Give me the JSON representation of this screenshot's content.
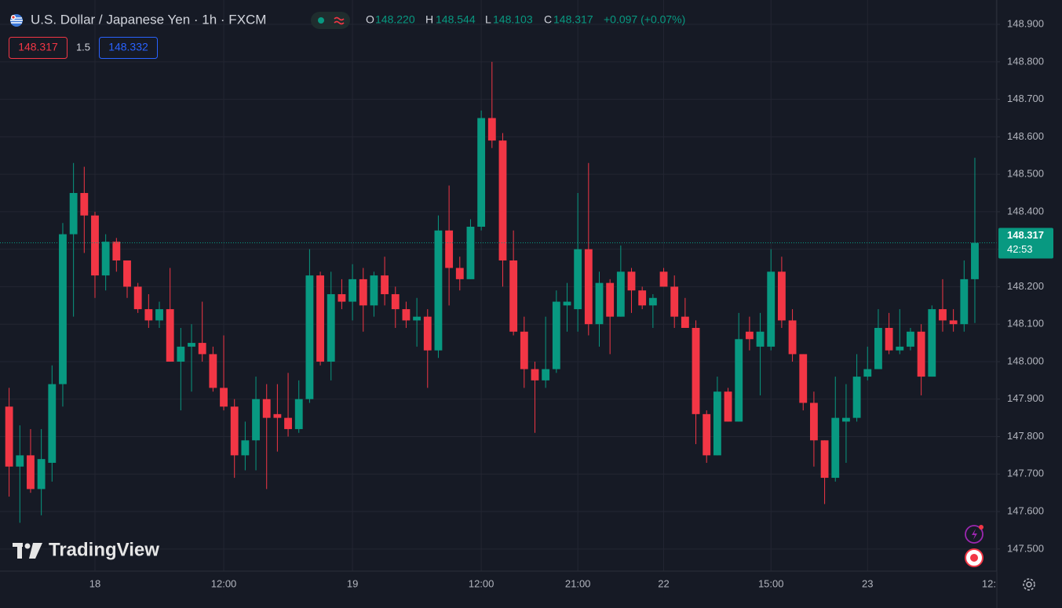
{
  "header": {
    "title": "U.S. Dollar / Japanese Yen · 1h · FXCM",
    "legend": [
      {
        "key": "O",
        "value": "148.220"
      },
      {
        "key": "H",
        "value": "148.544"
      },
      {
        "key": "L",
        "value": "148.103"
      },
      {
        "key": "C",
        "value": "148.317"
      }
    ],
    "change": "+0.097 (+0.07%)",
    "sell_price": "148.317",
    "spread": "1.5",
    "buy_price": "148.332"
  },
  "logo": "TradingView",
  "chart_data": {
    "type": "candlestick",
    "up_color": "#089981",
    "down_color": "#f23645",
    "grid": true,
    "open": [
      147.88,
      147.72,
      147.75,
      147.66,
      147.73,
      147.94,
      148.34,
      148.45,
      148.39,
      148.23,
      148.32,
      148.27,
      148.2,
      148.14,
      148.11,
      148.14,
      148.0,
      148.04,
      148.05,
      148.02,
      147.93,
      147.88,
      147.75,
      147.79,
      147.9,
      147.86,
      147.85,
      147.82,
      147.9,
      148.23,
      148.0,
      148.18,
      148.16,
      148.22,
      148.15,
      148.23,
      148.18,
      148.14,
      148.11,
      148.12,
      148.03,
      148.35,
      148.25,
      148.22,
      148.36,
      148.65,
      148.59,
      148.27,
      148.08,
      147.98,
      147.95,
      147.98,
      148.15,
      148.14,
      148.3,
      148.1,
      148.21,
      148.12,
      148.24,
      148.19,
      148.15,
      148.24,
      148.2,
      148.12,
      148.09,
      147.86,
      147.75,
      147.92,
      147.84,
      148.08,
      148.04,
      148.04,
      148.24,
      148.11,
      148.02,
      147.89,
      147.79,
      147.69,
      147.84,
      147.85,
      147.96,
      147.98,
      148.09,
      148.03,
      148.04,
      148.08,
      147.96,
      148.14,
      148.11,
      148.1,
      148.22
    ],
    "high": [
      147.93,
      147.83,
      147.82,
      147.82,
      147.99,
      148.37,
      148.53,
      148.52,
      148.4,
      148.34,
      148.33,
      148.27,
      148.21,
      148.18,
      148.16,
      148.25,
      148.09,
      148.1,
      148.16,
      148.04,
      148.07,
      147.9,
      147.84,
      147.96,
      147.94,
      147.94,
      147.97,
      147.95,
      148.3,
      148.24,
      148.24,
      148.22,
      148.26,
      148.25,
      148.24,
      148.28,
      148.2,
      148.16,
      148.17,
      148.14,
      148.39,
      148.47,
      148.28,
      148.38,
      148.67,
      148.8,
      148.61,
      148.35,
      148.12,
      148.0,
      148.12,
      148.19,
      148.21,
      148.45,
      148.53,
      148.24,
      148.22,
      148.31,
      148.25,
      148.2,
      148.18,
      148.25,
      148.23,
      148.17,
      148.11,
      147.87,
      147.96,
      147.93,
      148.13,
      148.12,
      148.13,
      148.3,
      148.28,
      148.14,
      148.02,
      147.92,
      147.79,
      147.96,
      147.94,
      148.02,
      148.04,
      148.14,
      148.13,
      148.14,
      148.09,
      148.1,
      148.15,
      148.22,
      148.14,
      148.27,
      148.544
    ],
    "low": [
      147.64,
      147.57,
      147.65,
      147.59,
      147.68,
      147.88,
      148.12,
      148.29,
      148.17,
      148.19,
      148.24,
      148.17,
      148.13,
      148.09,
      148.09,
      148.0,
      147.87,
      147.92,
      148.0,
      147.92,
      147.87,
      147.69,
      147.71,
      147.71,
      147.66,
      147.76,
      147.8,
      147.81,
      147.89,
      147.99,
      147.95,
      148.14,
      148.11,
      148.08,
      148.12,
      148.15,
      148.09,
      148.09,
      148.04,
      147.93,
      148.01,
      148.15,
      148.19,
      148.22,
      148.35,
      148.57,
      148.2,
      148.07,
      147.93,
      147.81,
      147.93,
      147.97,
      148.08,
      148.08,
      148.07,
      148.04,
      148.02,
      148.12,
      148.13,
      148.14,
      148.09,
      148.2,
      148.09,
      148.09,
      147.78,
      147.73,
      147.75,
      147.84,
      147.84,
      148.03,
      147.91,
      148.03,
      148.09,
      148.0,
      147.87,
      147.72,
      147.62,
      147.68,
      147.73,
      147.84,
      147.95,
      147.98,
      148.02,
      148.02,
      148.03,
      147.91,
      147.96,
      148.08,
      148.08,
      148.08,
      148.103
    ],
    "close": [
      147.72,
      147.75,
      147.66,
      147.74,
      147.94,
      148.34,
      148.45,
      148.39,
      148.23,
      148.32,
      148.27,
      148.2,
      148.14,
      148.11,
      148.14,
      148.0,
      148.04,
      148.05,
      148.02,
      147.93,
      147.88,
      147.75,
      147.79,
      147.9,
      147.85,
      147.85,
      147.82,
      147.9,
      148.23,
      148.0,
      148.18,
      148.16,
      148.22,
      148.15,
      148.23,
      148.18,
      148.14,
      148.11,
      148.12,
      148.03,
      148.35,
      148.25,
      148.22,
      148.36,
      148.65,
      148.59,
      148.27,
      148.08,
      147.98,
      147.95,
      147.98,
      148.16,
      148.16,
      148.3,
      148.1,
      148.21,
      148.12,
      148.24,
      148.19,
      148.15,
      148.17,
      148.2,
      148.12,
      148.09,
      147.86,
      147.75,
      147.92,
      147.84,
      148.06,
      148.06,
      148.08,
      148.24,
      148.11,
      148.02,
      147.89,
      147.79,
      147.69,
      147.85,
      147.85,
      147.96,
      147.98,
      148.09,
      148.03,
      148.04,
      148.08,
      147.96,
      148.14,
      148.11,
      148.1,
      148.22,
      148.317
    ],
    "xlim": [
      -0.85,
      92.05
    ],
    "xticks": [
      {
        "value": 8,
        "label": "18"
      },
      {
        "value": 20,
        "label": "12:00"
      },
      {
        "value": 32,
        "label": "19"
      },
      {
        "value": 44,
        "label": "12:00"
      },
      {
        "value": 53,
        "label": "21:00"
      },
      {
        "value": 61,
        "label": "22"
      },
      {
        "value": 71,
        "label": "15:00"
      },
      {
        "value": 80,
        "label": "23"
      },
      {
        "value": 92,
        "label": "12:"
      }
    ],
    "ylim": [
      147.441,
      148.965
    ],
    "yticks": [
      {
        "value": 147.5,
        "label": "147.500"
      },
      {
        "value": 147.6,
        "label": "147.600"
      },
      {
        "value": 147.7,
        "label": "147.700"
      },
      {
        "value": 147.8,
        "label": "147.800"
      },
      {
        "value": 147.9,
        "label": "147.900"
      },
      {
        "value": 148.0,
        "label": "148.000"
      },
      {
        "value": 148.1,
        "label": "148.100"
      },
      {
        "value": 148.2,
        "label": "148.200"
      },
      {
        "value": 148.3,
        "label": "148.300"
      },
      {
        "value": 148.4,
        "label": "148.400"
      },
      {
        "value": 148.5,
        "label": "148.500"
      },
      {
        "value": 148.6,
        "label": "148.600"
      },
      {
        "value": 148.7,
        "label": "148.700"
      },
      {
        "value": 148.8,
        "label": "148.800"
      },
      {
        "value": 148.9,
        "label": "148.900"
      }
    ],
    "last_price": {
      "value": 148.317,
      "label": "148.317"
    },
    "countdown": "42:53"
  }
}
